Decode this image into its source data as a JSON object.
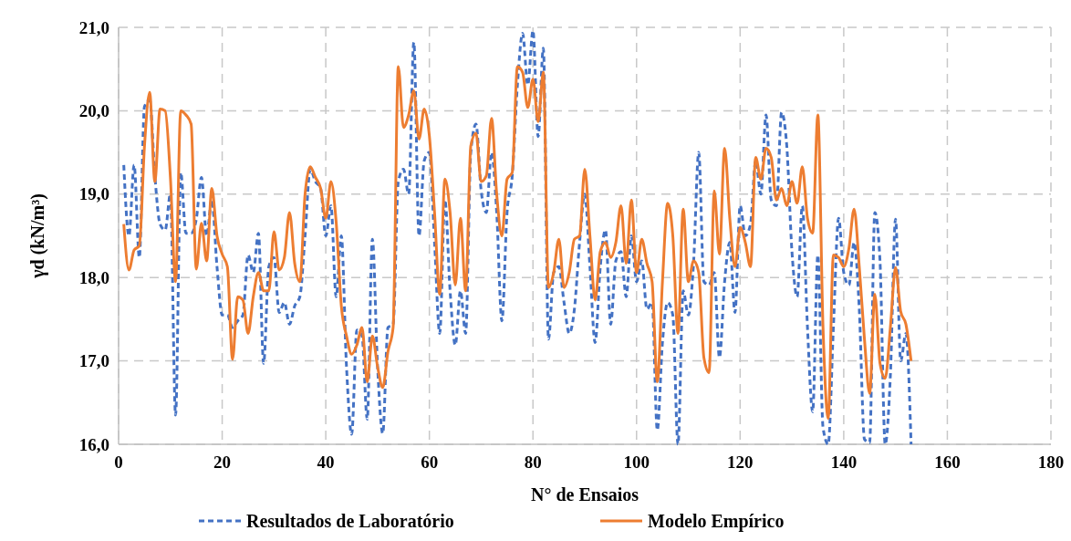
{
  "chart_data": {
    "type": "line",
    "xlabel": "N° de Ensaios",
    "ylabel": "γd (kN/m³)",
    "x": [
      1,
      2,
      3,
      4,
      5,
      6,
      7,
      8,
      9,
      10,
      11,
      12,
      13,
      14,
      15,
      16,
      17,
      18,
      19,
      20,
      21,
      22,
      23,
      24,
      25,
      26,
      27,
      28,
      29,
      30,
      31,
      32,
      33,
      34,
      35,
      36,
      37,
      38,
      39,
      40,
      41,
      42,
      43,
      44,
      45,
      46,
      47,
      48,
      49,
      50,
      51,
      52,
      53,
      54,
      55,
      56,
      57,
      58,
      59,
      60,
      61,
      62,
      63,
      64,
      65,
      66,
      67,
      68,
      69,
      70,
      71,
      72,
      73,
      74,
      75,
      76,
      77,
      78,
      79,
      80,
      81,
      82,
      83,
      84,
      85,
      86,
      87,
      88,
      89,
      90,
      91,
      92,
      93,
      94,
      95,
      96,
      97,
      98,
      99,
      100,
      101,
      102,
      103,
      104,
      105,
      106,
      107,
      108,
      109,
      110,
      111,
      112,
      113,
      114,
      115,
      116,
      117,
      118,
      119,
      120,
      121,
      122,
      123,
      124,
      125,
      126,
      127,
      128,
      129,
      130,
      131,
      132,
      133,
      134,
      135,
      136,
      137,
      138,
      139,
      140,
      141,
      142,
      143,
      144,
      145,
      146,
      147,
      148,
      149,
      150,
      151,
      152,
      153
    ],
    "series": [
      {
        "name": "Resultados de Laboratório",
        "color": "#4472c4",
        "line_style": "dashed",
        "values": [
          19.35,
          18.5,
          19.35,
          18.24,
          20.05,
          20.13,
          19.22,
          18.64,
          18.57,
          19.0,
          16.35,
          19.26,
          18.53,
          18.53,
          18.7,
          19.2,
          18.5,
          18.93,
          18.13,
          17.55,
          17.55,
          17.4,
          17.48,
          17.55,
          18.27,
          18.06,
          18.53,
          16.97,
          18.13,
          18.24,
          17.58,
          17.7,
          17.44,
          17.66,
          17.77,
          18.5,
          19.3,
          19.15,
          19.07,
          18.5,
          18.86,
          17.77,
          18.5,
          16.93,
          16.12,
          17.37,
          17.3,
          16.3,
          18.46,
          16.93,
          16.13,
          17.4,
          17.44,
          19.15,
          19.3,
          19.0,
          20.82,
          18.5,
          19.4,
          19.5,
          18.42,
          17.33,
          18.93,
          17.84,
          17.19,
          17.84,
          17.33,
          19.5,
          19.84,
          19.04,
          18.78,
          19.5,
          18.78,
          17.48,
          18.78,
          19.22,
          20.31,
          20.93,
          20.31,
          20.96,
          19.69,
          20.75,
          17.26,
          18.06,
          18.13,
          17.7,
          17.33,
          17.62,
          18.42,
          19.0,
          18.13,
          17.22,
          18.13,
          18.57,
          17.44,
          18.2,
          18.31,
          17.77,
          18.5,
          17.95,
          18.2,
          17.62,
          17.7,
          16.17,
          17.22,
          17.7,
          17.55,
          16.0,
          17.84,
          17.55,
          18.17,
          19.5,
          17.95,
          17.91,
          18.06,
          17.04,
          17.95,
          18.42,
          17.58,
          18.86,
          18.5,
          18.64,
          19.4,
          19.0,
          19.95,
          18.93,
          18.86,
          19.98,
          19.58,
          18.31,
          17.77,
          18.86,
          17.4,
          16.39,
          18.27,
          16.2,
          16.0,
          17.4,
          18.71,
          18.06,
          17.91,
          18.42,
          17.62,
          16.06,
          16.02,
          18.78,
          18.2,
          16.0,
          16.82,
          18.7,
          17.0,
          17.33,
          16.0
        ]
      },
      {
        "name": "Modelo Empírico",
        "color": "#ed7d31",
        "line_style": "solid",
        "values": [
          18.64,
          18.09,
          18.33,
          18.38,
          19.58,
          20.22,
          19.15,
          20.02,
          20.0,
          19.2,
          17.95,
          20.0,
          19.95,
          19.84,
          18.1,
          18.65,
          18.2,
          19.07,
          18.5,
          18.28,
          18.13,
          17.02,
          17.77,
          17.73,
          17.33,
          17.77,
          18.06,
          17.84,
          17.84,
          18.55,
          18.09,
          18.24,
          18.78,
          18.17,
          17.95,
          19.0,
          19.33,
          19.2,
          19.07,
          18.71,
          19.15,
          18.67,
          17.66,
          17.3,
          17.08,
          17.19,
          17.4,
          16.75,
          17.3,
          16.93,
          16.68,
          17.11,
          17.4,
          20.53,
          19.8,
          19.95,
          20.24,
          19.66,
          20.02,
          19.7,
          18.78,
          17.8,
          19.18,
          18.78,
          17.91,
          18.71,
          17.84,
          19.58,
          19.73,
          19.15,
          19.22,
          19.91,
          19.0,
          18.5,
          19.18,
          19.26,
          20.53,
          20.46,
          20.04,
          20.38,
          19.87,
          20.46,
          17.88,
          18.06,
          18.46,
          17.88,
          18.06,
          18.46,
          18.5,
          19.3,
          18.5,
          17.73,
          18.31,
          18.42,
          18.24,
          18.42,
          18.86,
          18.17,
          18.93,
          18.06,
          18.46,
          18.17,
          17.95,
          16.75,
          17.95,
          18.89,
          18.5,
          17.33,
          18.82,
          17.95,
          18.2,
          18.06,
          17.04,
          16.86,
          19.04,
          18.28,
          19.55,
          18.71,
          18.13,
          18.6,
          18.42,
          18.13,
          19.44,
          19.18,
          19.55,
          19.44,
          18.93,
          19.07,
          18.86,
          19.15,
          18.89,
          19.33,
          18.71,
          18.53,
          19.95,
          17.4,
          16.31,
          18.27,
          18.24,
          18.13,
          18.35,
          18.82,
          18.13,
          17.26,
          16.61,
          17.8,
          16.97,
          16.79,
          17.4,
          18.12,
          17.59,
          17.44,
          17.0
        ]
      }
    ],
    "xlim": [
      0,
      180
    ],
    "xticks": [
      0,
      20,
      40,
      60,
      80,
      100,
      120,
      140,
      160,
      180
    ],
    "ylim": [
      16,
      21
    ],
    "yticks": [
      {
        "value": 16,
        "label": "16,0"
      },
      {
        "value": 17,
        "label": "17,0"
      },
      {
        "value": 18,
        "label": "18,0"
      },
      {
        "value": 19,
        "label": "19,0"
      },
      {
        "value": 20,
        "label": "20,0"
      },
      {
        "value": 21,
        "label": "21,0"
      }
    ],
    "grid": true,
    "legend": "bottom"
  }
}
